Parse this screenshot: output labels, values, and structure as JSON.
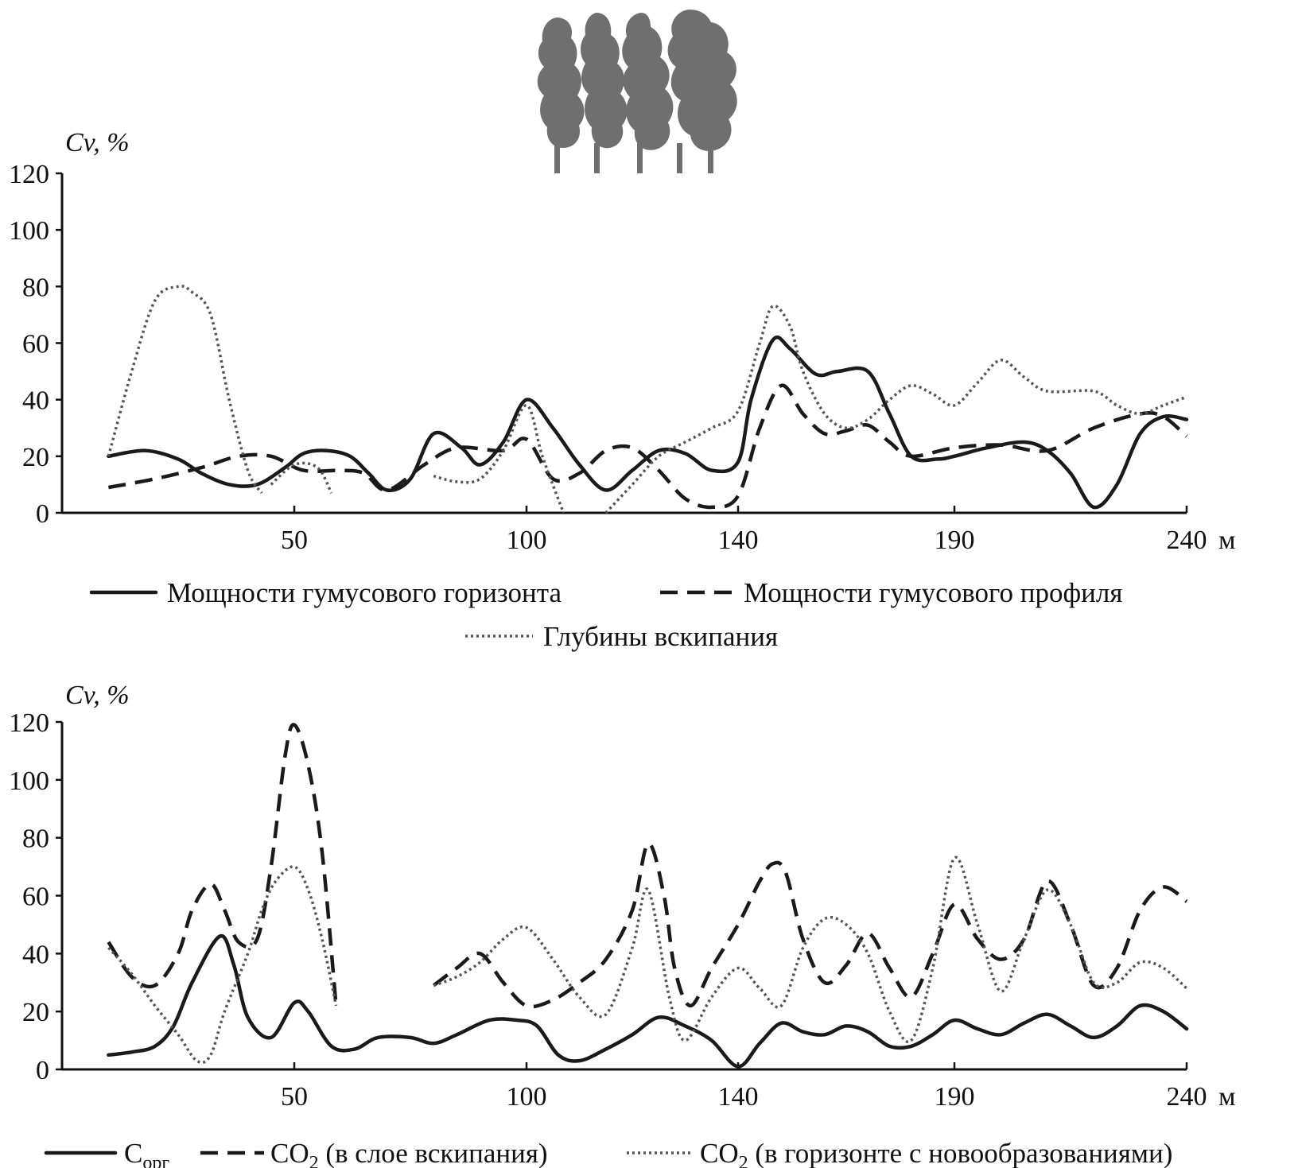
{
  "chart_data": [
    {
      "type": "line",
      "ylabel": "Cv, %",
      "ylim": [
        0,
        120
      ],
      "yticks": [
        0,
        20,
        40,
        60,
        80,
        100,
        120
      ],
      "x_positions": [
        50,
        100,
        140,
        190,
        240
      ],
      "x_tick_labels": [
        "50",
        "100",
        "140",
        "190",
        "240"
      ],
      "x_unit": "м",
      "xlim": [
        0,
        240
      ],
      "legend_position": "bottom",
      "series": [
        {
          "name": "Мощности гумусового горизонта",
          "style": "solid",
          "x": [
            10,
            18,
            25,
            30,
            36,
            42,
            48,
            52,
            57,
            62,
            66,
            70,
            75,
            80,
            86,
            90,
            95,
            100,
            105,
            110,
            115,
            120,
            125,
            130,
            135,
            140,
            143,
            148,
            152,
            158,
            163,
            170,
            175,
            180,
            186,
            190,
            197,
            205,
            210,
            215,
            220,
            225,
            230,
            235,
            240
          ],
          "y": [
            20,
            22,
            19,
            14,
            10,
            10,
            16,
            21,
            22,
            20,
            14,
            8,
            12,
            28,
            23,
            17,
            25,
            40,
            30,
            17,
            8,
            15,
            22,
            21,
            15,
            18,
            40,
            61,
            58,
            49,
            50,
            50,
            35,
            20,
            19,
            20,
            23,
            25,
            22,
            14,
            2,
            10,
            28,
            34,
            33
          ]
        },
        {
          "name": "Мощности гумусового профиля",
          "style": "dashed",
          "x": [
            10,
            20,
            30,
            38,
            45,
            52,
            60,
            65,
            70,
            78,
            85,
            95,
            100,
            105,
            110,
            115,
            120,
            125,
            130,
            135,
            140,
            145,
            150,
            155,
            160,
            165,
            170,
            175,
            180,
            190,
            200,
            210,
            220,
            230,
            235,
            240
          ],
          "y": [
            9,
            12,
            16,
            20,
            20,
            15,
            15,
            14,
            8,
            17,
            23,
            22,
            26,
            12,
            14,
            22,
            23,
            15,
            5,
            2,
            6,
            30,
            45,
            35,
            28,
            29,
            31,
            25,
            20,
            23,
            24,
            22,
            30,
            35,
            34,
            27
          ]
        },
        {
          "name": "Глубины вскипания",
          "style": "dotted",
          "segments": [
            {
              "x": [
                10,
                15,
                20,
                25,
                28,
                32,
                36,
                40,
                43
              ],
              "y": [
                20,
                50,
                75,
                80,
                78,
                70,
                40,
                15,
                7
              ]
            },
            {
              "x": [
                45,
                50,
                55,
                58
              ],
              "y": [
                10,
                17,
                16,
                7
              ]
            },
            {
              "x": [
                80,
                85,
                90,
                95,
                100,
                103,
                107
              ],
              "y": [
                13,
                11,
                12,
                22,
                38,
                20,
                0
              ]
            },
            {
              "x": [
                115,
                120,
                125,
                130,
                135,
                140,
                145,
                148,
                152,
                155,
                160,
                165,
                170,
                175,
                180,
                185,
                190,
                195,
                200,
                205,
                210,
                220,
                225,
                230,
                235,
                240
              ],
              "y": [
                0,
                10,
                20,
                25,
                30,
                36,
                60,
                73,
                66,
                50,
                35,
                30,
                33,
                40,
                45,
                42,
                38,
                46,
                54,
                48,
                43,
                43,
                38,
                35,
                38,
                41
              ]
            }
          ]
        }
      ]
    },
    {
      "type": "line",
      "ylabel": "Cv, %",
      "ylim": [
        0,
        120
      ],
      "yticks": [
        0,
        20,
        40,
        60,
        80,
        100,
        120
      ],
      "x_positions": [
        50,
        100,
        140,
        190,
        240
      ],
      "x_tick_labels": [
        "50",
        "100",
        "140",
        "190",
        "240"
      ],
      "x_unit": "м",
      "xlim": [
        0,
        240
      ],
      "legend_position": "bottom",
      "series": [
        {
          "name": "C",
          "name_sub": "орг",
          "style": "solid",
          "x": [
            10,
            15,
            20,
            24,
            28,
            34,
            37,
            40,
            45,
            50,
            53,
            58,
            63,
            68,
            75,
            80,
            85,
            92,
            98,
            102,
            106,
            110,
            115,
            120,
            125,
            130,
            135,
            140,
            145,
            150,
            155,
            160,
            165,
            170,
            175,
            180,
            185,
            190,
            195,
            200,
            205,
            210,
            215,
            220,
            225,
            230,
            235,
            240
          ],
          "y": [
            5,
            6,
            8,
            15,
            30,
            46,
            36,
            18,
            11,
            23,
            20,
            8,
            7,
            11,
            11,
            9,
            12,
            17,
            17,
            15,
            5,
            3,
            7,
            12,
            18,
            15,
            10,
            1,
            9,
            16,
            13,
            12,
            15,
            13,
            8,
            8,
            12,
            17,
            14,
            12,
            16,
            19,
            15,
            11,
            15,
            22,
            20,
            14
          ]
        },
        {
          "name": "CO",
          "name_sub": "2",
          "name_suffix": " (в слое вскипания)",
          "style": "dashed",
          "segments": [
            {
              "x": [
                10,
                15,
                20,
                25,
                28,
                32,
                35,
                38,
                42,
                45,
                48,
                50,
                53,
                56,
                59
              ],
              "y": [
                44,
                32,
                29,
                40,
                55,
                64,
                55,
                44,
                45,
                70,
                108,
                119,
                105,
                75,
                22
              ]
            },
            {
              "x": [
                80,
                85,
                90,
                95,
                100,
                105,
                110,
                115,
                120,
                123,
                126,
                128,
                131,
                135,
                140,
                145,
                148,
                151,
                155,
                160,
                165,
                170,
                175,
                180,
                185,
                190,
                195,
                200,
                205,
                210,
                215,
                220,
                225,
                230,
                235,
                240
              ],
              "y": [
                29,
                35,
                40,
                30,
                22,
                24,
                30,
                38,
                55,
                78,
                60,
                35,
                22,
                35,
                50,
                65,
                71,
                68,
                45,
                30,
                36,
                47,
                35,
                25,
                40,
                57,
                45,
                38,
                45,
                65,
                50,
                29,
                35,
                55,
                63,
                58
              ]
            }
          ]
        },
        {
          "name": "CO",
          "name_sub": "2",
          "name_suffix": " (в горизонте с новообразованиями)",
          "style": "dotted",
          "segments": [
            {
              "x": [
                10,
                15,
                20,
                25,
                29,
                32,
                35,
                40,
                43,
                46,
                50,
                53,
                56,
                59
              ],
              "y": [
                42,
                33,
                22,
                12,
                3,
                5,
                20,
                40,
                55,
                65,
                70,
                62,
                45,
                22
              ]
            },
            {
              "x": [
                80,
                85,
                90,
                95,
                100,
                105,
                110,
                115,
                120,
                123,
                127,
                130,
                135,
                140,
                145,
                150,
                155,
                160,
                165,
                170,
                175,
                180,
                185,
                190,
                195,
                200,
                205,
                210,
                215,
                220,
                225,
                230,
                235,
                240
              ],
              "y": [
                29,
                32,
                37,
                45,
                49,
                38,
                25,
                19,
                42,
                62,
                25,
                10,
                25,
                35,
                28,
                22,
                42,
                52,
                50,
                40,
                20,
                10,
                35,
                73,
                50,
                27,
                45,
                62,
                50,
                30,
                30,
                37,
                35,
                28
              ]
            }
          ]
        }
      ]
    }
  ]
}
